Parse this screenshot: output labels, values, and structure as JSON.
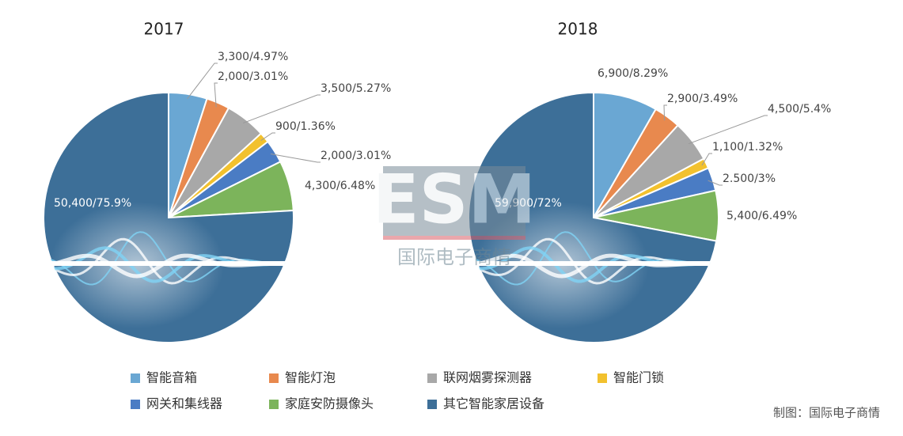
{
  "chart_data": [
    {
      "type": "pie",
      "title": "2017",
      "values": [
        3300,
        2000,
        3500,
        900,
        2000,
        4300,
        50400
      ],
      "value_labels": [
        "3,300/4.97%",
        "2,000/3.01%",
        "3,500/5.27%",
        "900/1.36%",
        "2,000/3.01%",
        "4,300/6.48%",
        "50,400/75.9%"
      ]
    },
    {
      "type": "pie",
      "title": "2018",
      "values": [
        6900,
        2900,
        4500,
        1100,
        2500,
        5400,
        59900
      ],
      "value_labels": [
        "6,900/8.29%",
        "2,900/3.49%",
        "4,500/5.4%",
        "1,100/1.32%",
        "2.500/3%",
        "5,400/6.49%",
        "59,900/72%"
      ]
    }
  ],
  "legend": {
    "categories": [
      "智能音箱",
      "智能灯泡",
      "联网烟雾探测器",
      "智能门锁",
      "网关和集线器",
      "家庭安防摄像头",
      "其它智能家居设备"
    ],
    "colors": [
      "#6aa7d3",
      "#e8894e",
      "#a8a8a8",
      "#f2c12e",
      "#4a7cc4",
      "#7cb45b",
      "#3d6f98"
    ]
  },
  "watermark": {
    "logo": "ESM",
    "name": "国际电子商情"
  },
  "footer": "制图：国际电子商情"
}
